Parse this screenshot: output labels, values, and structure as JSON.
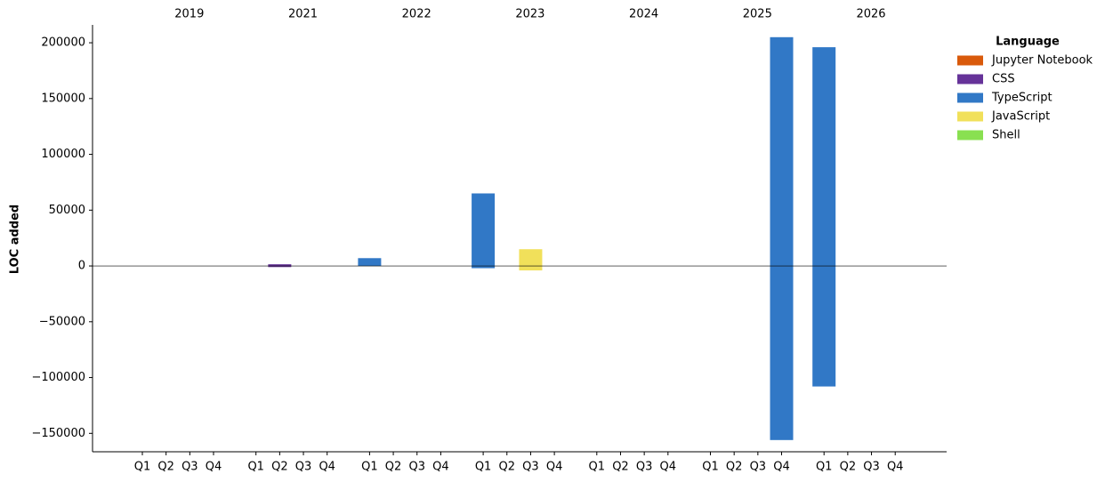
{
  "chart_data": {
    "type": "bar",
    "stacked": true,
    "y_label": "LOC added",
    "years": [
      "2019",
      "2021",
      "2022",
      "2023",
      "2024",
      "2025",
      "2026"
    ],
    "categories": [
      "Q1",
      "Q2",
      "Q3",
      "Q4",
      "Q1",
      "Q2",
      "Q3",
      "Q4",
      "Q1",
      "Q2",
      "Q3",
      "Q4",
      "Q1",
      "Q2",
      "Q3",
      "Q4",
      "Q1",
      "Q2",
      "Q3",
      "Q4",
      "Q1",
      "Q2",
      "Q3",
      "Q4",
      "Q1",
      "Q2",
      "Q3",
      "Q4"
    ],
    "legend_title": "Language",
    "legend_position": "upper right outside",
    "series": [
      {
        "name": "Jupyter Notebook",
        "color": "#d95a0b",
        "values": [
          null,
          null,
          null,
          null,
          null,
          null,
          null,
          null,
          null,
          null,
          null,
          null,
          null,
          null,
          null,
          null,
          null,
          null,
          null,
          null,
          null,
          null,
          null,
          null,
          null,
          null,
          null,
          null
        ],
        "removed": [
          null,
          null,
          null,
          null,
          null,
          null,
          null,
          null,
          null,
          null,
          null,
          null,
          null,
          null,
          null,
          null,
          null,
          null,
          null,
          null,
          null,
          null,
          null,
          null,
          null,
          null,
          null,
          null
        ]
      },
      {
        "name": "CSS",
        "color": "#663399",
        "values": [
          null,
          null,
          null,
          null,
          null,
          1500,
          null,
          null,
          null,
          null,
          null,
          null,
          null,
          null,
          null,
          null,
          null,
          null,
          null,
          null,
          null,
          null,
          null,
          null,
          null,
          null,
          null,
          null
        ],
        "removed": [
          null,
          null,
          null,
          null,
          null,
          -1000,
          null,
          null,
          null,
          null,
          null,
          null,
          null,
          null,
          null,
          null,
          null,
          null,
          null,
          null,
          null,
          null,
          null,
          null,
          null,
          null,
          null,
          null
        ]
      },
      {
        "name": "TypeScript",
        "color": "#3178c6",
        "values": [
          null,
          null,
          null,
          null,
          null,
          null,
          null,
          null,
          7000,
          null,
          null,
          null,
          65000,
          null,
          null,
          null,
          null,
          null,
          null,
          null,
          null,
          null,
          null,
          205000,
          196000,
          null,
          null,
          null
        ],
        "removed": [
          null,
          null,
          null,
          null,
          null,
          null,
          null,
          null,
          null,
          null,
          null,
          null,
          -2000,
          null,
          null,
          null,
          null,
          null,
          null,
          null,
          null,
          null,
          null,
          -156000,
          -108000,
          null,
          null,
          null
        ]
      },
      {
        "name": "JavaScript",
        "color": "#f1e05a",
        "values": [
          null,
          null,
          null,
          null,
          null,
          null,
          null,
          null,
          null,
          null,
          null,
          null,
          null,
          null,
          15000,
          null,
          null,
          null,
          null,
          null,
          null,
          null,
          null,
          null,
          null,
          null,
          null,
          null
        ],
        "removed": [
          null,
          null,
          null,
          null,
          null,
          null,
          null,
          null,
          null,
          null,
          null,
          null,
          null,
          null,
          -4000,
          null,
          null,
          null,
          null,
          null,
          null,
          null,
          null,
          null,
          null,
          null,
          null,
          null
        ]
      },
      {
        "name": "Shell",
        "color": "#89e051",
        "values": [
          null,
          null,
          null,
          null,
          null,
          null,
          null,
          null,
          null,
          null,
          null,
          null,
          null,
          null,
          null,
          null,
          null,
          null,
          null,
          null,
          null,
          null,
          null,
          null,
          null,
          null,
          null,
          null
        ],
        "removed": [
          null,
          null,
          null,
          null,
          null,
          null,
          null,
          null,
          null,
          null,
          null,
          null,
          null,
          null,
          null,
          null,
          null,
          null,
          null,
          null,
          null,
          null,
          null,
          null,
          null,
          null,
          null,
          null
        ]
      }
    ],
    "ylim": [
      -166500,
      216000
    ],
    "yticks": [
      {
        "value": -150000,
        "label": "−150000"
      },
      {
        "value": -100000,
        "label": "−100000"
      },
      {
        "value": -50000,
        "label": "−50000"
      },
      0,
      50000,
      100000,
      150000,
      200000
    ],
    "zero_line": true,
    "grid": false
  }
}
